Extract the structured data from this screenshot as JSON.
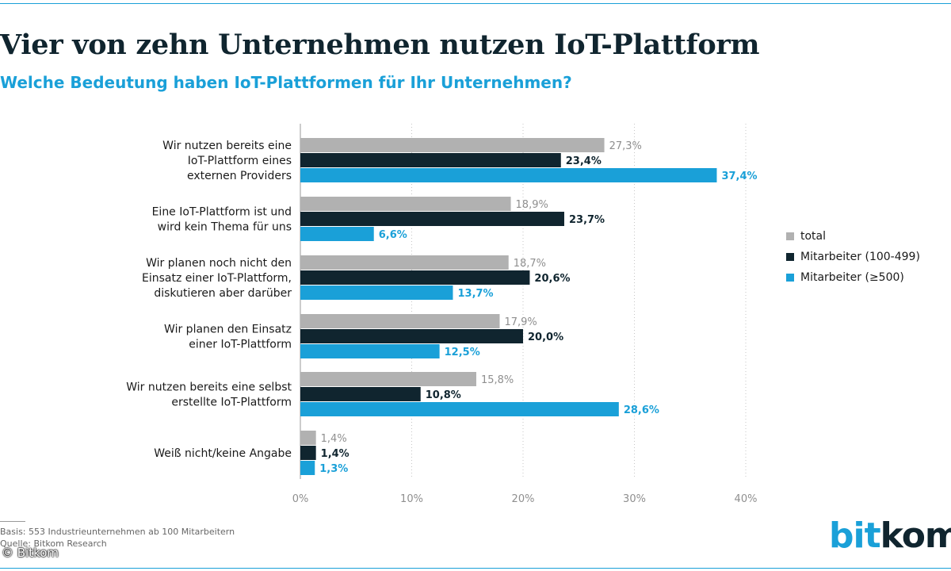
{
  "title": "Vier von zehn Unternehmen nutzen IoT-Plattform",
  "subtitle": "Welche Bedeutung haben IoT-Plattformen für Ihr Unternehmen?",
  "chart_data": {
    "type": "bar",
    "orientation": "horizontal",
    "categories": [
      [
        "Wir nutzen bereits eine",
        "IoT-Plattform eines",
        "externen Providers"
      ],
      [
        "Eine IoT-Plattform ist und",
        "wird kein Thema für uns"
      ],
      [
        "Wir planen noch nicht den",
        "Einsatz einer IoT-Plattform,",
        "diskutieren aber darüber"
      ],
      [
        "Wir planen den Einsatz",
        "einer IoT-Plattform"
      ],
      [
        "Wir nutzen bereits eine selbst",
        "erstellte IoT-Plattform"
      ],
      [
        "Weiß nicht/keine Angabe"
      ]
    ],
    "series": [
      {
        "name": "total",
        "color": "#b1b1b1",
        "label_color": "#8f8f8f",
        "label_bold": false,
        "values": [
          27.3,
          18.9,
          18.7,
          17.9,
          15.8,
          1.4
        ],
        "labels": [
          "27,3%",
          "18,9%",
          "18,7%",
          "17,9%",
          "15,8%",
          "1,4%"
        ]
      },
      {
        "name": "Mitarbeiter (100-499)",
        "color": "#10252f",
        "label_color": "#10252f",
        "label_bold": true,
        "values": [
          23.4,
          23.7,
          20.6,
          20.0,
          10.8,
          1.4
        ],
        "labels": [
          "23,4%",
          "23,7%",
          "20,6%",
          "20,0%",
          "10,8%",
          "1,4%"
        ]
      },
      {
        "name": "Mitarbeiter (≥500)",
        "color": "#1aa0d8",
        "label_color": "#1aa0d8",
        "label_bold": true,
        "values": [
          37.4,
          6.6,
          13.7,
          12.5,
          28.6,
          1.3
        ],
        "labels": [
          "37,4%",
          "6,6%",
          "13,7%",
          "12,5%",
          "28,6%",
          "1,3%"
        ]
      }
    ],
    "x_ticks": [
      0,
      10,
      20,
      30,
      40
    ],
    "x_tick_labels": [
      "0%",
      "10%",
      "20%",
      "30%",
      "40%"
    ],
    "xlim": [
      0,
      40
    ],
    "grid": "vertical-dotted",
    "legend": "right"
  },
  "footnotes": {
    "basis": "Basis: 553 Industrieunternehmen ab 100 Mitarbeitern",
    "source": "Quelle: Bitkom Research"
  },
  "copyright": "© Bitkom",
  "logo": {
    "part1": "bit",
    "part2": "kom"
  }
}
